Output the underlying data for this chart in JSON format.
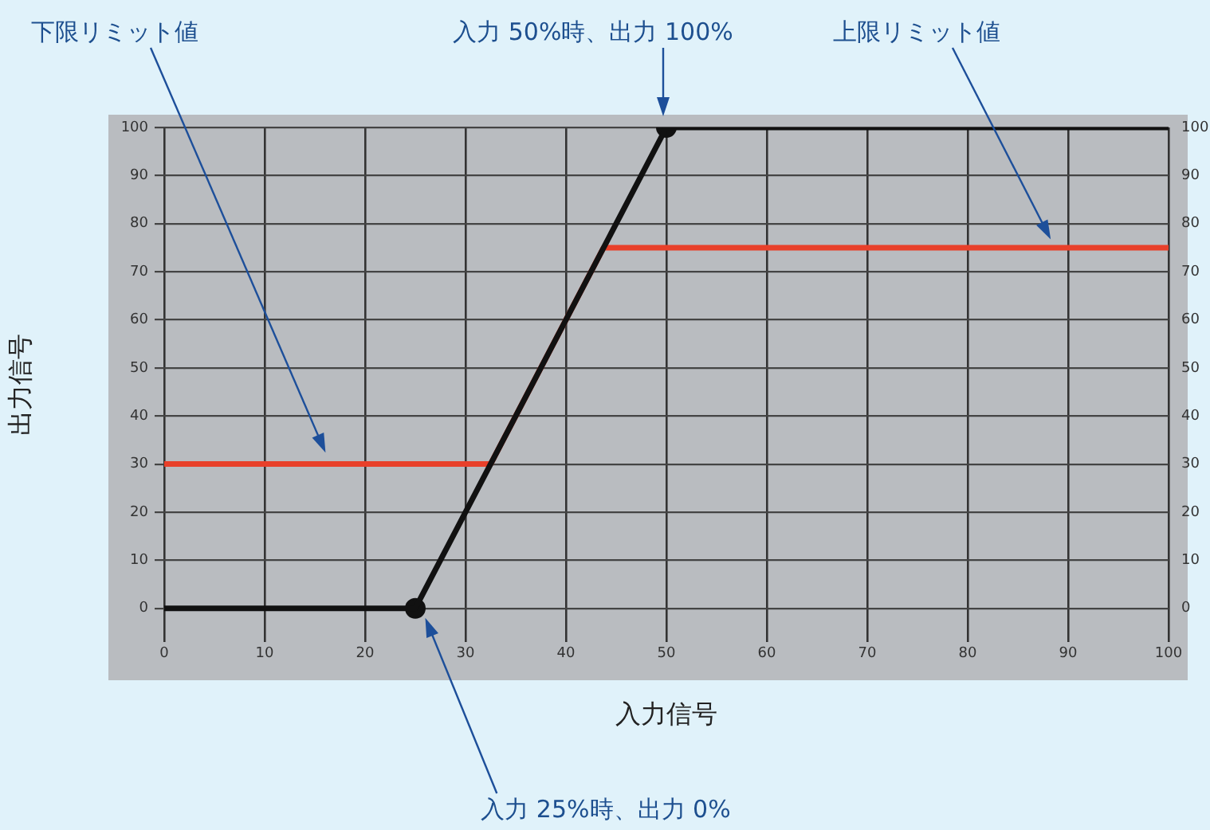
{
  "chart_data": {
    "type": "line",
    "xlabel": "入力信号",
    "ylabel": "出力信号",
    "xlim": [
      0,
      100
    ],
    "xticks": [
      0,
      10,
      20,
      30,
      40,
      50,
      60,
      70,
      80,
      90,
      100
    ],
    "ylim": [
      -7,
      100
    ],
    "yticks": [
      0,
      10,
      20,
      30,
      40,
      50,
      60,
      70,
      80,
      90,
      100
    ],
    "y2lim": [
      -7,
      100
    ],
    "y2ticks": [
      0,
      10,
      20,
      30,
      40,
      50,
      60,
      70,
      80,
      90,
      100
    ],
    "grid": true,
    "legend": false,
    "marker": "none",
    "line_style": "solid",
    "series": [
      {
        "type": "line",
        "color": "#111111",
        "x": [
          0,
          25,
          50,
          100
        ],
        "values": [
          0,
          0,
          100,
          100
        ]
      },
      {
        "type": "line",
        "color": "#e8402a",
        "x": [
          0,
          32.5,
          43.75,
          100
        ],
        "values": [
          30,
          30,
          75,
          75
        ]
      },
      {
        "type": "scatter",
        "marker": "circle",
        "color": "#111111",
        "x": [
          25,
          50
        ],
        "values": [
          0,
          100
        ]
      }
    ],
    "annotations": [
      "下限リミット値",
      "入力 50%時、出力 100%",
      "上限リミット値",
      "入力 25%時、出力 0%"
    ]
  }
}
